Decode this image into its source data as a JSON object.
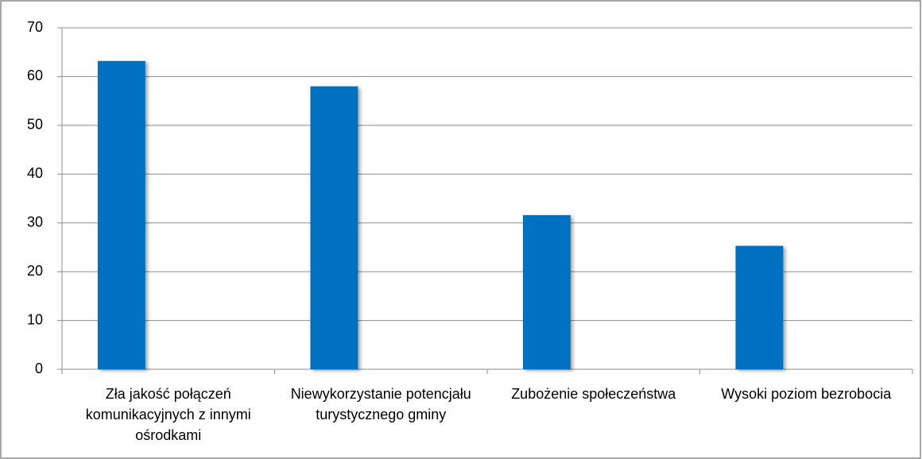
{
  "chart_data": {
    "type": "bar",
    "categories": [
      "Zła jakość połączeń komunikacyjnych z innymi ośrodkami",
      "Niewykorzystanie potencjału turystycznego gminy",
      "Zubożenie społeczeństwa",
      "Wysoki poziom bezrobocia"
    ],
    "values": [
      63.2,
      58,
      31.6,
      25.3
    ],
    "color": "#0070c0",
    "ylim": [
      0,
      70
    ],
    "yticks": [
      0,
      10,
      20,
      30,
      40,
      50,
      60,
      70
    ],
    "grid": true
  }
}
